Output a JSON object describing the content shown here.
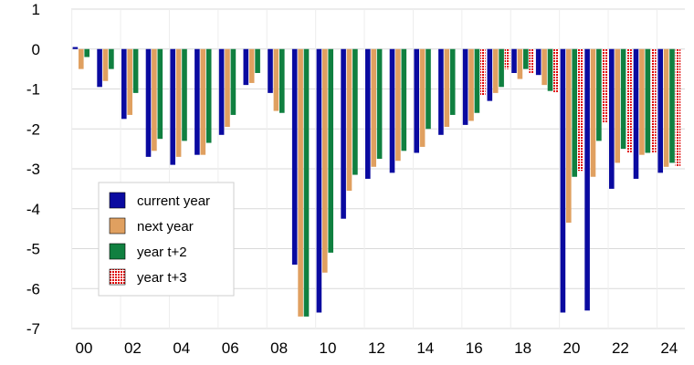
{
  "chart_data": {
    "type": "bar",
    "title": "",
    "xlabel": "",
    "ylabel": "",
    "ylim": [
      -7,
      1
    ],
    "yticks": [
      1,
      0,
      -1,
      -2,
      -3,
      -4,
      -5,
      -6,
      -7
    ],
    "x_tick_labels": [
      "00",
      "02",
      "04",
      "06",
      "08",
      "10",
      "12",
      "14",
      "16",
      "18",
      "20",
      "22",
      "24"
    ],
    "categories": [
      "2000",
      "2001",
      "2002",
      "2003",
      "2004",
      "2005",
      "2006",
      "2007",
      "2008",
      "2009",
      "2010",
      "2011",
      "2012",
      "2013",
      "2014",
      "2015",
      "2016",
      "2017",
      "2018",
      "2019",
      "2020",
      "2021",
      "2022",
      "2023",
      "2024"
    ],
    "grid": "horizontal",
    "legend_position": "bottom-left",
    "series": [
      {
        "name": "current year",
        "color": "#0a0aa0",
        "pattern": "solid",
        "values": [
          0.05,
          -0.95,
          -1.75,
          -2.7,
          -2.9,
          -2.65,
          -2.15,
          -0.9,
          -1.1,
          -5.4,
          -6.6,
          -4.25,
          -3.25,
          -3.1,
          -2.6,
          -2.15,
          -1.9,
          -1.3,
          -0.6,
          -0.65,
          -6.6,
          -6.55,
          -3.5,
          -3.25,
          -3.1
        ]
      },
      {
        "name": "next year",
        "color": "#e0a060",
        "pattern": "solid",
        "values": [
          -0.5,
          -0.8,
          -1.65,
          -2.55,
          -2.7,
          -2.65,
          -1.95,
          -0.85,
          -1.55,
          -6.7,
          -5.6,
          -3.55,
          -2.95,
          -2.8,
          -2.45,
          -1.95,
          -1.8,
          -1.1,
          -0.75,
          -0.9,
          -4.35,
          -3.2,
          -2.85,
          -2.65,
          -2.95
        ]
      },
      {
        "name": "year t+2",
        "color": "#108040",
        "pattern": "solid",
        "values": [
          -0.2,
          -0.5,
          -1.1,
          -2.25,
          -2.3,
          -2.35,
          -1.65,
          -0.6,
          -1.6,
          -6.7,
          -5.1,
          -3.15,
          -2.75,
          -2.55,
          -2.0,
          -1.65,
          -1.6,
          -0.95,
          -0.5,
          -1.05,
          -3.2,
          -2.3,
          -2.5,
          -2.6,
          -2.85
        ]
      },
      {
        "name": "year t+3",
        "color": "#e00000",
        "pattern": "dotted",
        "values": [
          null,
          null,
          null,
          null,
          null,
          null,
          null,
          null,
          null,
          null,
          null,
          null,
          null,
          null,
          null,
          null,
          -1.15,
          -0.5,
          -0.6,
          -1.1,
          -3.05,
          -1.85,
          -2.6,
          -2.6,
          -2.95
        ]
      }
    ]
  }
}
